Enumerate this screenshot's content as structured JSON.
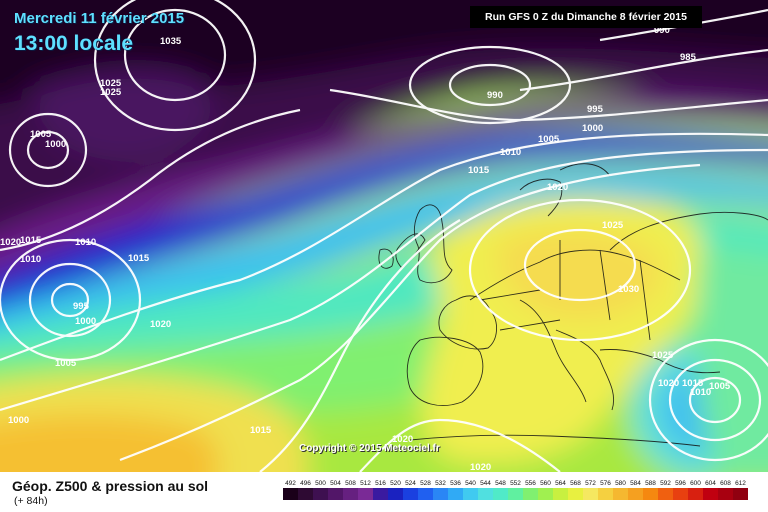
{
  "header": {
    "date": "Mercredi 11 février 2015",
    "time": "13:00 locale",
    "run": "Run GFS 0 Z du Dimanche 8 février 2015"
  },
  "copyright": "Copyright © 2015 Meteociel.fr",
  "legend": {
    "title": "Géop. Z500 & pression au sol",
    "subtitle": "(+ 84h)",
    "scale_values": [
      "492",
      "496",
      "500",
      "504",
      "508",
      "512",
      "516",
      "520",
      "524",
      "528",
      "532",
      "536",
      "540",
      "544",
      "548",
      "552",
      "556",
      "560",
      "564",
      "568",
      "572",
      "576",
      "580",
      "584",
      "588",
      "592",
      "596",
      "600",
      "604",
      "608",
      "612"
    ],
    "scale_colors": [
      "#1a0019",
      "#2e0a33",
      "#3e1050",
      "#521668",
      "#662080",
      "#7a2a96",
      "#3a1aa0",
      "#1a22c0",
      "#1a40e0",
      "#2060f0",
      "#2a86f5",
      "#30aaf5",
      "#40caf0",
      "#50e0e0",
      "#50eac8",
      "#60f0a0",
      "#80f070",
      "#a0f050",
      "#c8f040",
      "#e8f040",
      "#f5e860",
      "#f5d040",
      "#f5b830",
      "#f5a020",
      "#f58810",
      "#f06010",
      "#e84010",
      "#d82010",
      "#c00010",
      "#a80010",
      "#900010"
    ]
  },
  "isobars": [
    "1035",
    "1025",
    "1025",
    "1005",
    "1000",
    "1020",
    "1015",
    "1010",
    "1010",
    "995",
    "1000",
    "1015",
    "1020",
    "1005",
    "1000",
    "1015",
    "990",
    "995",
    "1000",
    "1005",
    "1010",
    "1015",
    "1020",
    "1025",
    "1030",
    "1025",
    "1020",
    "1015",
    "1005",
    "1010",
    "1020",
    "1020",
    "985",
    "990"
  ]
}
